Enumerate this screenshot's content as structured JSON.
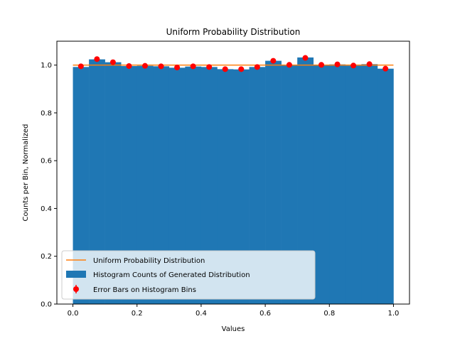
{
  "chart_data": {
    "type": "bar",
    "title": "Uniform Probability Distribution",
    "xlabel": "Values",
    "ylabel": "Counts per Bin, Normalized",
    "xlim": [
      -0.05,
      1.05
    ],
    "ylim": [
      0.0,
      1.1
    ],
    "xticks": [
      0.0,
      0.2,
      0.4,
      0.6,
      0.8,
      1.0
    ],
    "xtick_labels": [
      "0.0",
      "0.2",
      "0.4",
      "0.6",
      "0.8",
      "1.0"
    ],
    "yticks": [
      0.0,
      0.2,
      0.4,
      0.6,
      0.8,
      1.0
    ],
    "ytick_labels": [
      "0.0",
      "0.2",
      "0.4",
      "0.6",
      "0.8",
      "1.0"
    ],
    "grid": false,
    "legend_position": "lower-left",
    "bin_edges": [
      0.0,
      0.05,
      0.1,
      0.15,
      0.2,
      0.25,
      0.3,
      0.35,
      0.4,
      0.45,
      0.5,
      0.55,
      0.6,
      0.65,
      0.7,
      0.75,
      0.8,
      0.85,
      0.9,
      0.95,
      1.0
    ],
    "series": [
      {
        "name": "Uniform Probability Distribution",
        "kind": "line",
        "color": "#ff7f0e",
        "x": [
          0.0,
          1.0
        ],
        "y": [
          1.0,
          1.0
        ]
      },
      {
        "name": "Histogram Counts of Generated Distribution",
        "kind": "bar",
        "color": "#1f77b4",
        "values": [
          0.992,
          1.024,
          1.012,
          0.996,
          0.997,
          0.995,
          0.989,
          0.994,
          0.992,
          0.983,
          0.982,
          0.992,
          1.018,
          1.001,
          1.032,
          1.001,
          1.003,
          0.998,
          1.004,
          0.985
        ]
      },
      {
        "name": "Error Bars on Histogram Bins",
        "kind": "errorbar",
        "color": "#ff0000",
        "x": [
          0.025,
          0.075,
          0.125,
          0.175,
          0.225,
          0.275,
          0.325,
          0.375,
          0.425,
          0.475,
          0.525,
          0.575,
          0.625,
          0.675,
          0.725,
          0.775,
          0.825,
          0.875,
          0.925,
          0.975
        ],
        "y": [
          0.995,
          1.025,
          1.012,
          0.996,
          0.997,
          0.995,
          0.99,
          0.995,
          0.992,
          0.983,
          0.983,
          0.992,
          1.018,
          1.001,
          1.03,
          1.001,
          1.003,
          0.998,
          1.004,
          0.985
        ],
        "err": [
          0.01,
          0.01,
          0.01,
          0.01,
          0.01,
          0.01,
          0.01,
          0.01,
          0.01,
          0.01,
          0.01,
          0.01,
          0.01,
          0.01,
          0.01,
          0.01,
          0.01,
          0.01,
          0.01,
          0.01
        ]
      }
    ]
  }
}
